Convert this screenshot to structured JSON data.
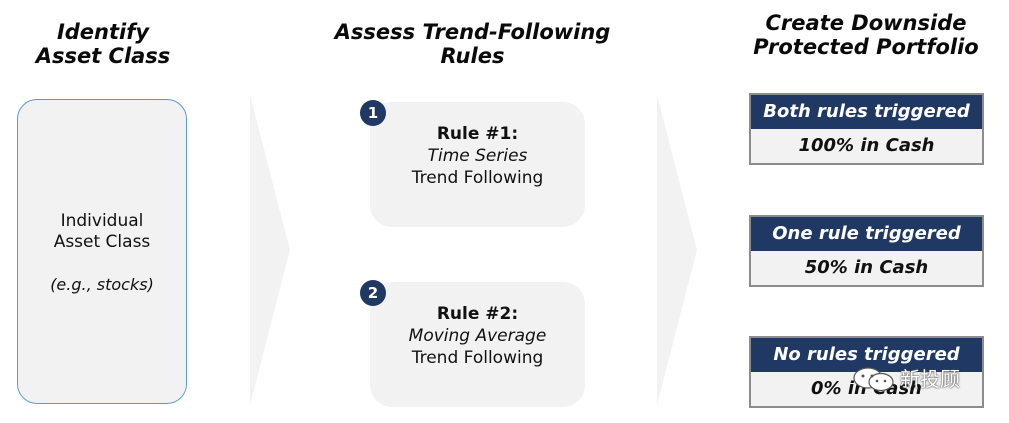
{
  "headers": {
    "col1": [
      "Identify",
      "Asset Class"
    ],
    "col2": [
      "Assess Trend-Following",
      "Rules"
    ],
    "col3": [
      "Create Downside",
      "Protected Portfolio"
    ]
  },
  "asset": {
    "line1": "Individual",
    "line2": "Asset Class",
    "example": "(e.g., stocks)"
  },
  "rules": [
    {
      "badge": "1",
      "title": "Rule #1:",
      "subtitle": "Time Series",
      "footer": "Trend Following"
    },
    {
      "badge": "2",
      "title": "Rule #2:",
      "subtitle": "Moving Average",
      "footer": "Trend Following"
    }
  ],
  "outcomes": [
    {
      "condition": "Both rules triggered",
      "result": "100% in Cash"
    },
    {
      "condition": "One rule triggered",
      "result": "50% in Cash"
    },
    {
      "condition": "No rules triggered",
      "result": "0% in Cash"
    }
  ],
  "watermark": {
    "text": "新投顾"
  },
  "colors": {
    "navy": "#1f3864",
    "box_bg": "#f2f2f2",
    "border_blue": "#5b9bd5",
    "border_gray": "#8c8c8c"
  }
}
